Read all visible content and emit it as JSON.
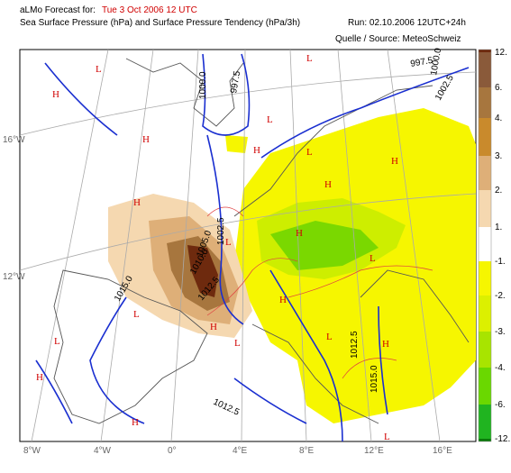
{
  "header": {
    "forecast_prefix": "aLMo Forecast for:",
    "forecast_time": "Tue 3 Oct 2006 12 UTC",
    "subtitle": "Sea Surface Pressure (hPa)  and  Surface Pressure Tendency (hPa/3h)",
    "run": "Run: 02.10.2006 12UTC+24h",
    "source": "Quelle / Source: MeteoSchweiz"
  },
  "colorbar": {
    "positive": [
      {
        "value": 12,
        "label": "12.",
        "color": "#6e2a0e"
      },
      {
        "value": 6,
        "label": "6.",
        "color": "#8a5a3a"
      },
      {
        "value": 4,
        "label": "4.",
        "color": "#a7763e"
      },
      {
        "value": 3,
        "label": "3.",
        "color": "#c98a2c"
      },
      {
        "value": 2,
        "label": "2.",
        "color": "#deaf78"
      },
      {
        "value": 1,
        "label": "1.",
        "color": "#f5d8b0"
      }
    ],
    "negative": [
      {
        "value": -1,
        "label": "-1.",
        "color": "#f6f600"
      },
      {
        "value": -2,
        "label": "-2.",
        "color": "#dcf000"
      },
      {
        "value": -3,
        "label": "-3.",
        "color": "#a8e400"
      },
      {
        "value": -4,
        "label": "-4.",
        "color": "#6ad800"
      },
      {
        "value": -6,
        "label": "-6.",
        "color": "#20b420"
      },
      {
        "value": -12,
        "label": "-12.",
        "color": "#0a7a0a"
      }
    ]
  },
  "lat_labels": [
    "16°W",
    "12°W"
  ],
  "lon_labels": [
    "8°W",
    "4°W",
    "0°",
    "4°E",
    "8°E",
    "12°E",
    "16°E"
  ],
  "isobar_labels": [
    "1000.0",
    "997.5",
    "997.5",
    "1000.0",
    "1002.5",
    "1002.5",
    "1005.0",
    "1010.0",
    "1012.5",
    "1015.0",
    "1012.5",
    "1015.0",
    "1012.5"
  ],
  "pressure_centers": [
    "L",
    "H",
    "L",
    "L",
    "H",
    "H",
    "H",
    "L",
    "H",
    "L",
    "H",
    "L",
    "L",
    "L",
    "H",
    "H",
    "H",
    "L",
    "H",
    "L",
    "H",
    "L",
    "H"
  ]
}
